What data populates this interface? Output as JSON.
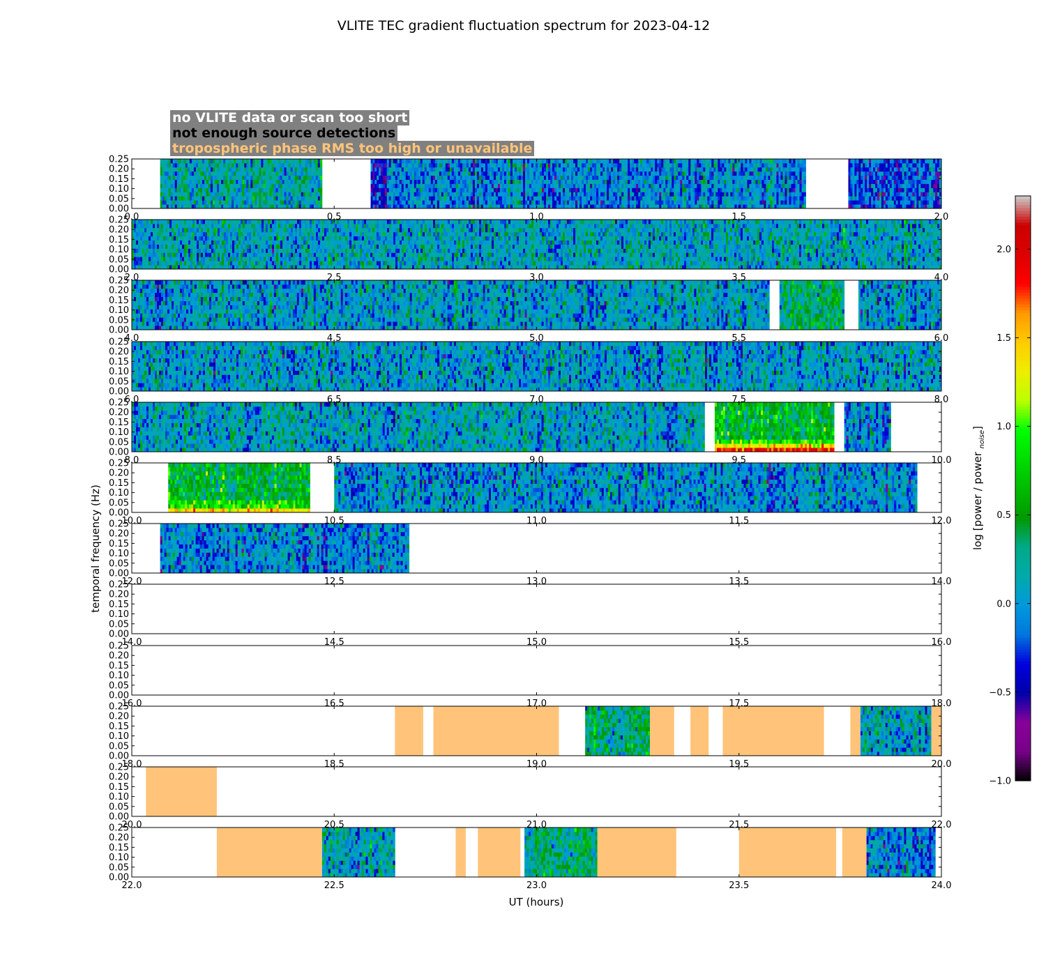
{
  "chart_data": {
    "type": "heatmap",
    "title": "VLITE TEC gradient fluctuation spectrum for 2023-04-12",
    "xlabel": "UT (hours)",
    "ylabel": "temporal frequency (Hz)",
    "ylim": [
      0,
      0.25
    ],
    "y_ticks": [
      "0.00",
      "0.05",
      "0.10",
      "0.15",
      "0.20",
      "0.25"
    ],
    "colorbar": {
      "label": "log [power / power",
      "label_subscript": "noise",
      "label_close": "]",
      "range": [
        -1.0,
        2.3
      ],
      "ticks": [
        "−1.0",
        "−0.5",
        "0.0",
        "0.5",
        "1.0",
        "1.5",
        "2.0"
      ],
      "tick_values": [
        -1.0,
        -0.5,
        0.0,
        0.5,
        1.0,
        1.5,
        2.0
      ],
      "colormap": "nipy_spectral"
    },
    "flag_legend": [
      {
        "text": "no VLITE data or scan too short",
        "color": "#ffffff",
        "fill": "none"
      },
      {
        "text": "not enough source detections",
        "color": "#000000",
        "fill": "#000000"
      },
      {
        "text": "tropospheric phase RMS too high or unavailable",
        "color": "#ffc47a",
        "fill": "#ffc47a"
      }
    ],
    "rows": [
      {
        "xlim": [
          0,
          2
        ],
        "x_ticks": [
          "0.0",
          "0.5",
          "1.0",
          "1.5",
          "2.0"
        ],
        "segments": [
          {
            "start": 0.07,
            "end": 0.47,
            "kind": "spectrum",
            "level": 0.15
          },
          {
            "start": 0.59,
            "end": 0.63,
            "kind": "spectrum",
            "level": -0.35
          },
          {
            "start": 0.63,
            "end": 1.665,
            "kind": "spectrum",
            "level": -0.05
          },
          {
            "start": 1.77,
            "end": 2.0,
            "kind": "spectrum",
            "level": -0.2
          }
        ]
      },
      {
        "xlim": [
          2,
          4
        ],
        "x_ticks": [
          "2.0",
          "2.5",
          "3.0",
          "3.5",
          "4.0"
        ],
        "segments": [
          {
            "start": 2.0,
            "end": 4.0,
            "kind": "spectrum",
            "level": 0.1
          }
        ]
      },
      {
        "xlim": [
          4,
          6
        ],
        "x_ticks": [
          "4.0",
          "4.5",
          "5.0",
          "5.5",
          "6.0"
        ],
        "segments": [
          {
            "start": 4.0,
            "end": 5.575,
            "kind": "spectrum",
            "level": 0.05
          },
          {
            "start": 5.6,
            "end": 5.76,
            "kind": "spectrum",
            "level": 0.35
          },
          {
            "start": 5.795,
            "end": 6.0,
            "kind": "spectrum",
            "level": 0.0
          }
        ]
      },
      {
        "xlim": [
          6,
          8
        ],
        "x_ticks": [
          "6.0",
          "6.5",
          "7.0",
          "7.5",
          "8.0"
        ],
        "segments": [
          {
            "start": 6.0,
            "end": 8.0,
            "kind": "spectrum",
            "level": 0.05
          }
        ]
      },
      {
        "xlim": [
          8,
          10
        ],
        "x_ticks": [
          "8.0",
          "8.5",
          "9.0",
          "9.5",
          "10.0"
        ],
        "segments": [
          {
            "start": 8.0,
            "end": 9.415,
            "kind": "spectrum",
            "level": 0.1
          },
          {
            "start": 9.44,
            "end": 9.735,
            "kind": "spectrum",
            "level": 0.55,
            "low_freq_peak": 1.8
          },
          {
            "start": 9.76,
            "end": 9.875,
            "kind": "spectrum",
            "level": -0.05
          }
        ]
      },
      {
        "xlim": [
          10,
          12
        ],
        "x_ticks": [
          "10.0",
          "10.5",
          "11.0",
          "11.5",
          "12.0"
        ],
        "segments": [
          {
            "start": 10.09,
            "end": 10.44,
            "kind": "spectrum",
            "level": 0.5,
            "low_freq_peak": 1.4
          },
          {
            "start": 10.5,
            "end": 11.94,
            "kind": "spectrum",
            "level": 0.0
          }
        ]
      },
      {
        "xlim": [
          12,
          14
        ],
        "x_ticks": [
          "12.0",
          "12.5",
          "13.0",
          "13.5",
          "14.0"
        ],
        "segments": [
          {
            "start": 12.07,
            "end": 12.685,
            "kind": "spectrum",
            "level": -0.05
          }
        ]
      },
      {
        "xlim": [
          14,
          16
        ],
        "x_ticks": [
          "14.0",
          "14.5",
          "15.0",
          "15.5",
          "16.0"
        ],
        "segments": []
      },
      {
        "xlim": [
          16,
          18
        ],
        "x_ticks": [
          "16.0",
          "16.5",
          "17.0",
          "17.5",
          "18.0"
        ],
        "segments": []
      },
      {
        "xlim": [
          18,
          20
        ],
        "x_ticks": [
          "18.0",
          "18.5",
          "19.0",
          "19.5",
          "20.0"
        ],
        "segments": [
          {
            "start": 18.65,
            "end": 18.72,
            "kind": "tropo"
          },
          {
            "start": 18.745,
            "end": 19.055,
            "kind": "tropo"
          },
          {
            "start": 19.12,
            "end": 19.28,
            "kind": "spectrum",
            "level": 0.35
          },
          {
            "start": 19.28,
            "end": 19.34,
            "kind": "tropo"
          },
          {
            "start": 19.38,
            "end": 19.425,
            "kind": "tropo"
          },
          {
            "start": 19.46,
            "end": 19.71,
            "kind": "tropo"
          },
          {
            "start": 19.775,
            "end": 19.8,
            "kind": "tropo"
          },
          {
            "start": 19.8,
            "end": 19.975,
            "kind": "spectrum",
            "level": 0.05
          },
          {
            "start": 19.975,
            "end": 20.0,
            "kind": "tropo"
          }
        ]
      },
      {
        "xlim": [
          20,
          22
        ],
        "x_ticks": [
          "20.0",
          "20.5",
          "21.0",
          "21.5",
          "22.0"
        ],
        "segments": [
          {
            "start": 20.035,
            "end": 20.21,
            "kind": "tropo"
          }
        ]
      },
      {
        "xlim": [
          22,
          24
        ],
        "x_ticks": [
          "22.0",
          "22.5",
          "23.0",
          "23.5",
          "24.0"
        ],
        "segments": [
          {
            "start": 22.21,
            "end": 22.47,
            "kind": "tropo"
          },
          {
            "start": 22.47,
            "end": 22.65,
            "kind": "spectrum",
            "level": 0.1
          },
          {
            "start": 22.8,
            "end": 22.825,
            "kind": "tropo"
          },
          {
            "start": 22.855,
            "end": 22.96,
            "kind": "tropo"
          },
          {
            "start": 22.97,
            "end": 23.15,
            "kind": "spectrum",
            "level": 0.3
          },
          {
            "start": 23.15,
            "end": 23.345,
            "kind": "tropo"
          },
          {
            "start": 23.5,
            "end": 23.74,
            "kind": "tropo"
          },
          {
            "start": 23.755,
            "end": 23.815,
            "kind": "tropo"
          },
          {
            "start": 23.815,
            "end": 23.985,
            "kind": "spectrum",
            "level": -0.05
          }
        ]
      }
    ]
  }
}
